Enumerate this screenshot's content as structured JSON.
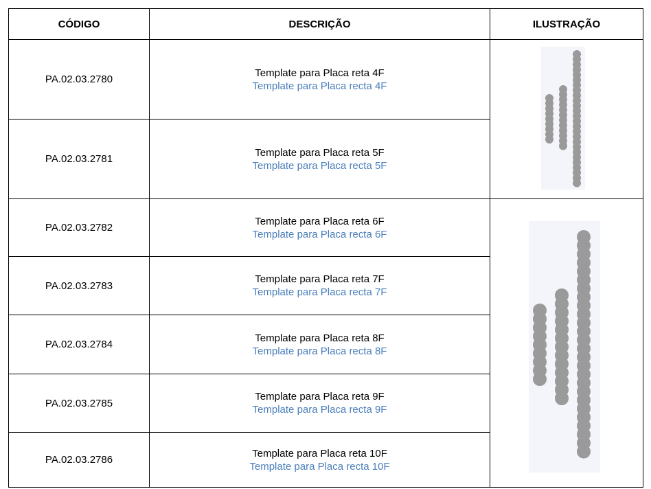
{
  "table": {
    "header": [
      "CÓDIGO",
      "DESCRIÇÃO",
      "ILUSTRAÇÃO"
    ],
    "rows": [
      {
        "code": "PA.02.03.2780",
        "pt": "Template para Placa reta 4F",
        "es": "Template para Placa recta 4F"
      },
      {
        "code": "PA.02.03.2781",
        "pt": "Template para Placa reta 5F",
        "es": "Template para Placa recta 5F"
      },
      {
        "code": "PA.02.03.2782",
        "pt": "Template para Placa reta 6F",
        "es": "Template para Placa recta 6F"
      },
      {
        "code": "PA.02.03.2783",
        "pt": "Template para Placa reta 7F",
        "es": "Template para Placa recta 7F"
      },
      {
        "code": "PA.02.03.2784",
        "pt": "Template para Placa reta 8F",
        "es": "Template para Placa recta 8F"
      },
      {
        "code": "PA.02.03.2785",
        "pt": "Template para Placa reta 9F",
        "es": "Template para Placa recta 9F"
      },
      {
        "code": "PA.02.03.2786",
        "pt": "Template para Placa reta 10F",
        "es": "Template para Placa recta 10F"
      }
    ]
  }
}
